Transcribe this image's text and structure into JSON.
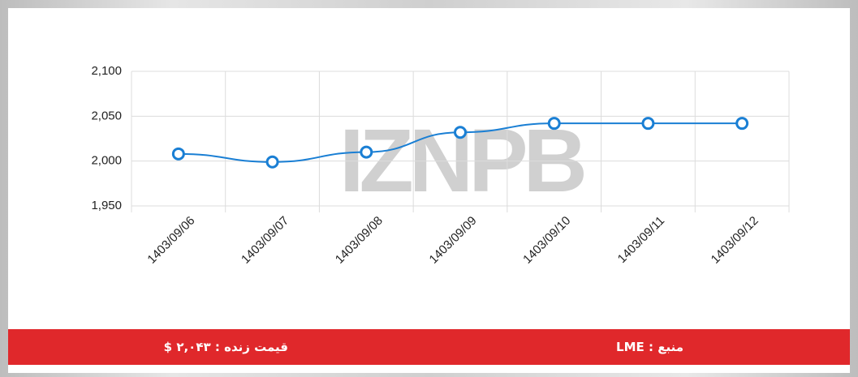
{
  "chart_data": {
    "type": "line",
    "watermark": "IZNPB",
    "categories": [
      "1403/09/06",
      "1403/09/07",
      "1403/09/08",
      "1403/09/09",
      "1403/09/10",
      "1403/09/11",
      "1403/09/12"
    ],
    "values": [
      2008,
      1999,
      2010,
      2032,
      2042,
      2042,
      2042
    ],
    "color": "#1a7fd4",
    "ylim": [
      1950,
      2100
    ],
    "yticks": [
      {
        "value": 1950,
        "label": "1,950"
      },
      {
        "value": 2000,
        "label": "2,000"
      },
      {
        "value": 2050,
        "label": "2,050"
      },
      {
        "value": 2100,
        "label": "2,100"
      }
    ],
    "grid": true
  },
  "footer": {
    "price": "قیمت زنده : ۲,۰۴۳ $",
    "source": "منبع : LME"
  }
}
